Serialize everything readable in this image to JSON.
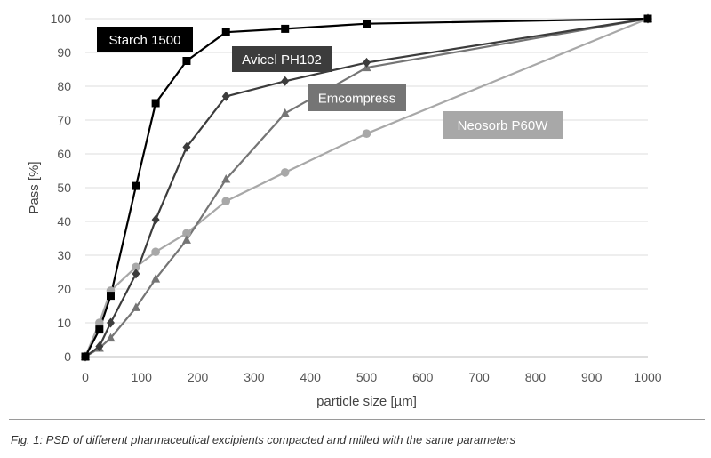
{
  "chart_data": {
    "type": "line",
    "xlabel": "particle size [µm]",
    "ylabel": "Pass [%]",
    "xlim": [
      0,
      1000
    ],
    "ylim": [
      0,
      100
    ],
    "xticks": [
      0,
      100,
      200,
      300,
      400,
      500,
      600,
      700,
      800,
      900,
      1000
    ],
    "yticks": [
      0,
      10,
      20,
      30,
      40,
      50,
      60,
      70,
      80,
      90,
      100
    ],
    "grid": "horizontal",
    "series": [
      {
        "name": "Starch 1500",
        "color": "#000000",
        "marker": "square",
        "x": [
          0,
          25,
          45,
          90,
          125,
          180,
          250,
          355,
          500,
          1000
        ],
        "y": [
          0,
          8,
          18,
          50.5,
          75,
          87.5,
          96,
          97,
          98.5,
          100
        ]
      },
      {
        "name": "Avicel PH102",
        "color": "#3c3c3c",
        "marker": "diamond",
        "x": [
          0,
          25,
          45,
          90,
          125,
          180,
          250,
          355,
          500,
          1000
        ],
        "y": [
          0,
          3,
          10,
          24.5,
          40.5,
          62,
          77,
          81.5,
          87,
          100
        ]
      },
      {
        "name": "Emcompress",
        "color": "#757575",
        "marker": "triangle",
        "x": [
          0,
          25,
          45,
          90,
          125,
          180,
          250,
          355,
          500,
          1000
        ],
        "y": [
          0,
          2.5,
          5.5,
          14.5,
          23,
          34.5,
          52.5,
          72,
          85.5,
          100
        ]
      },
      {
        "name": "Neosorb P60W",
        "color": "#a8a8a8",
        "marker": "circle",
        "x": [
          0,
          25,
          45,
          90,
          125,
          180,
          250,
          355,
          500,
          1000
        ],
        "y": [
          0,
          10,
          19.5,
          26.5,
          31,
          36.5,
          46,
          54.5,
          66,
          100
        ]
      }
    ]
  },
  "caption": "Fig. 1: PSD of different pharmaceutical excipients compacted and milled with the same parameters"
}
